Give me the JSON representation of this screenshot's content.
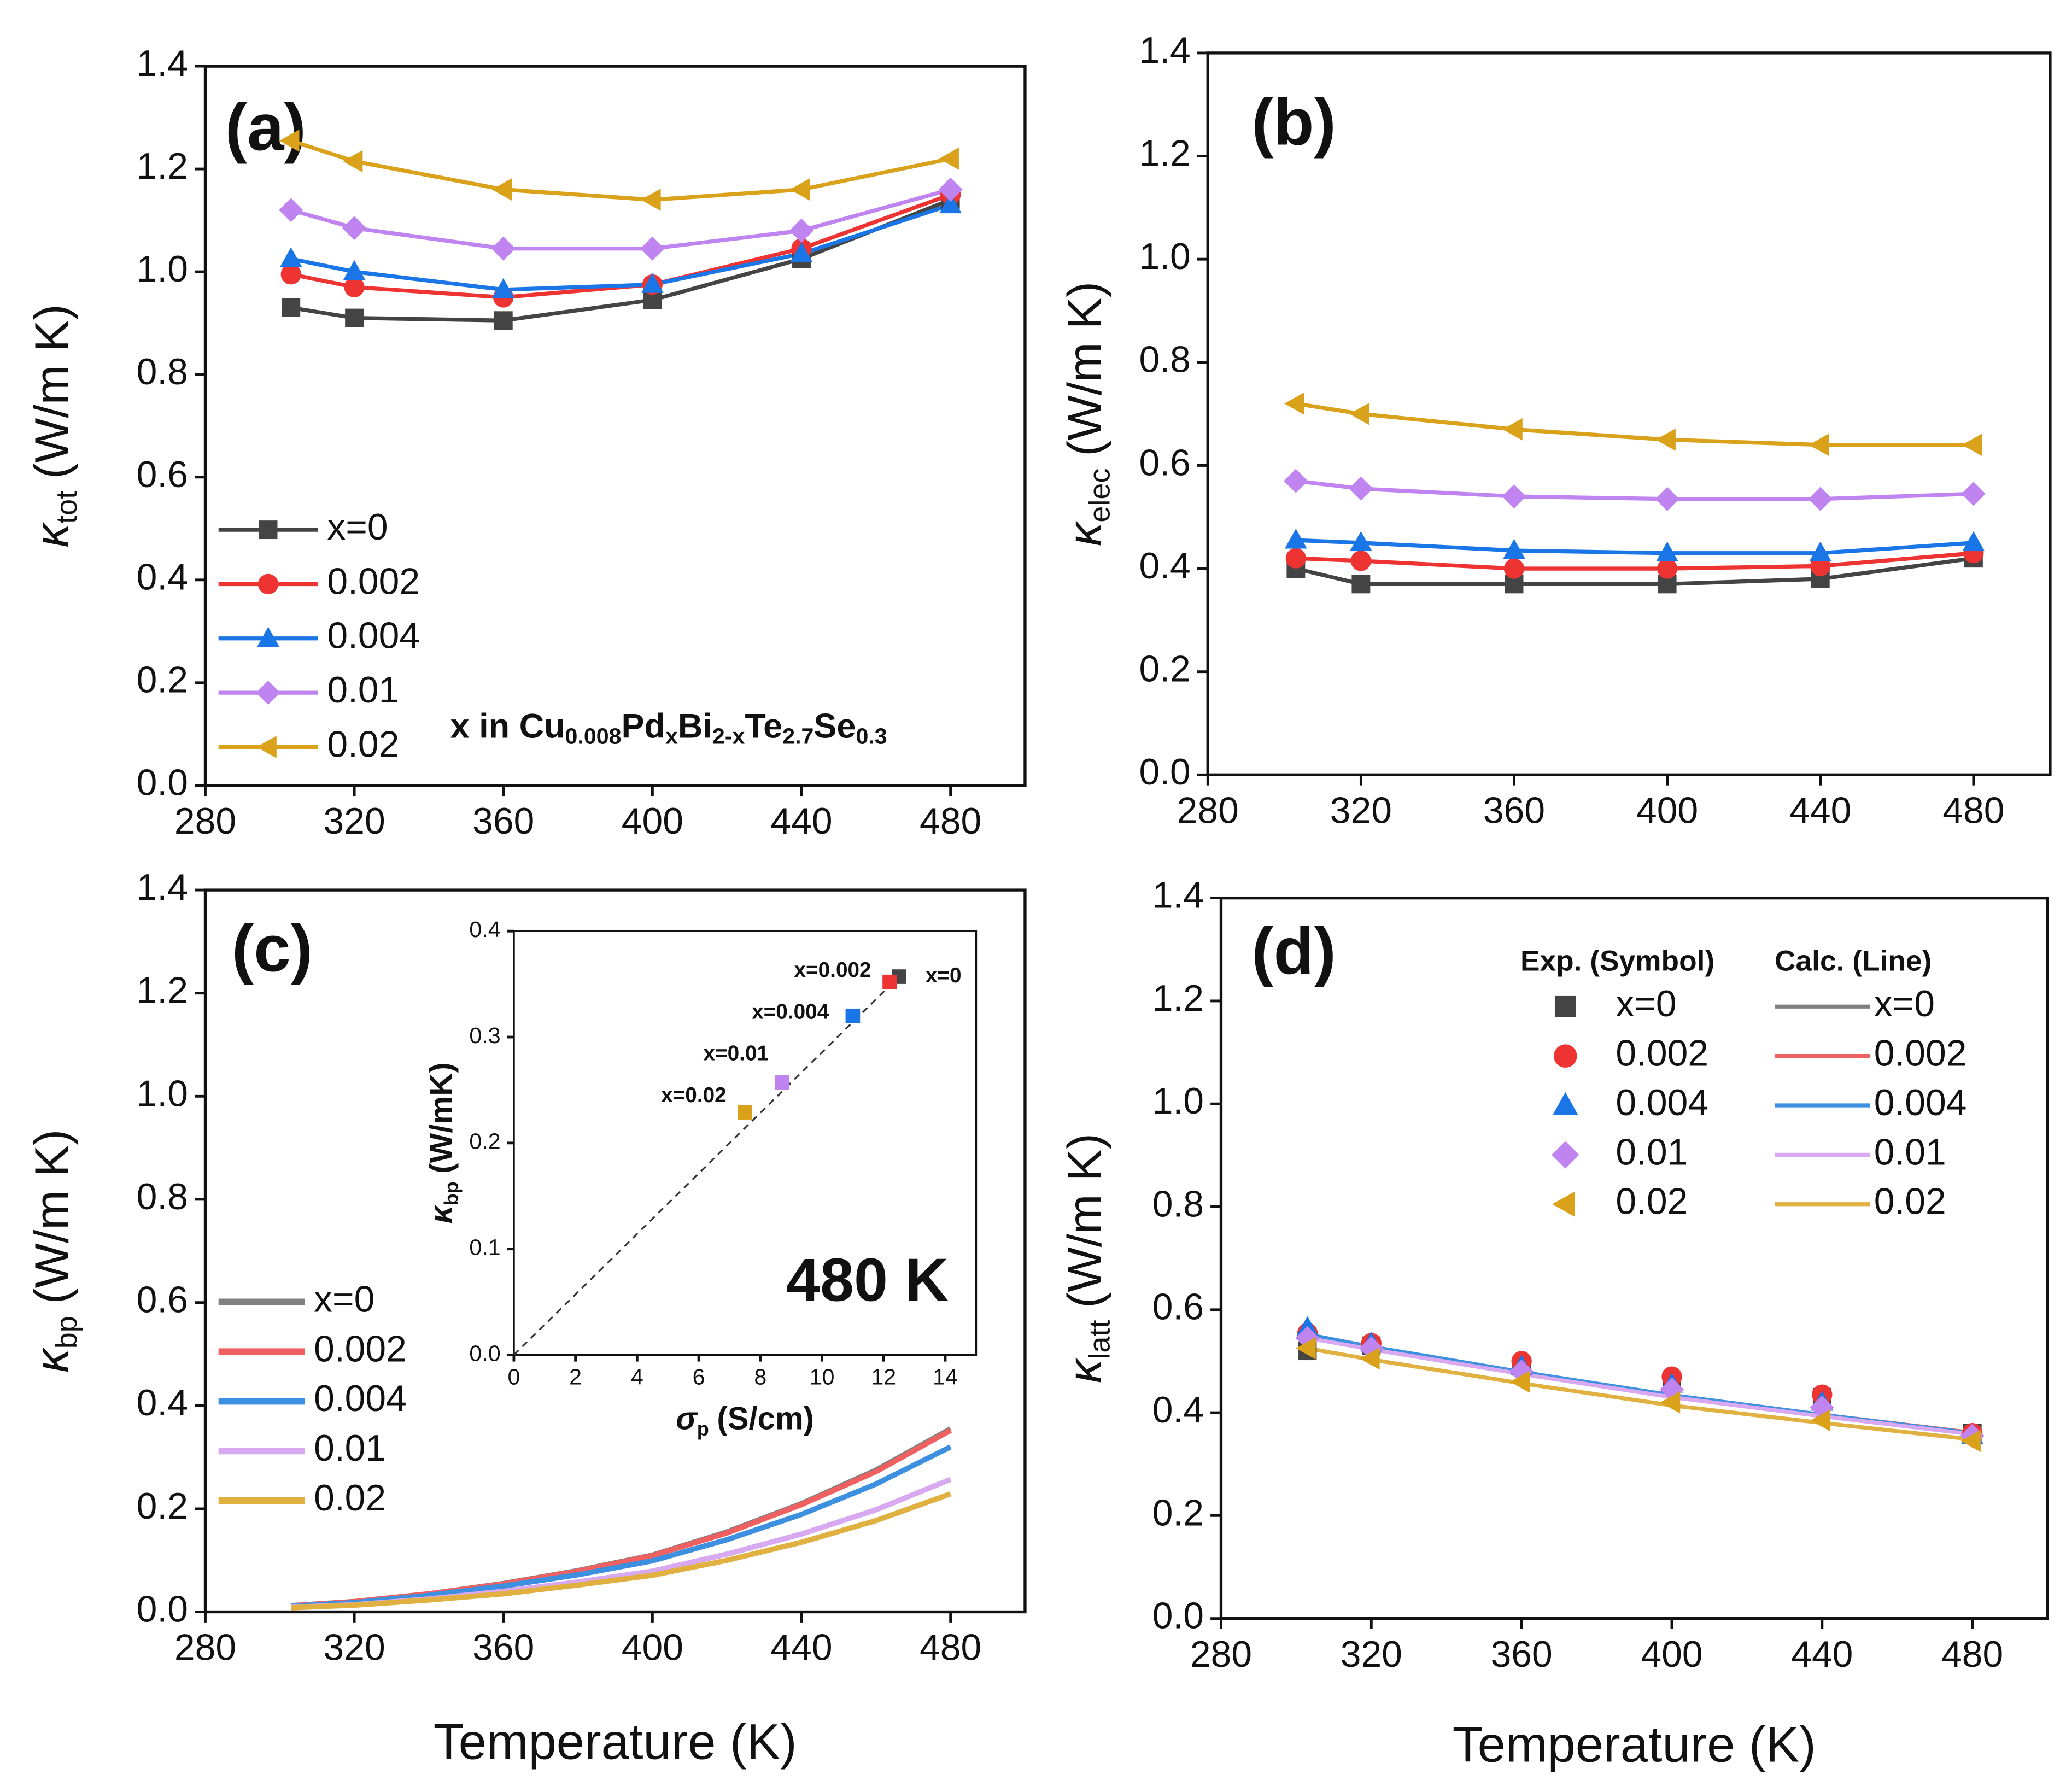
{
  "chart_data": [
    {
      "type": "line",
      "title": "(a)",
      "ylabel": {
        "symbol": "κ",
        "sub": "tot",
        "unit": "(W/m K)"
      },
      "annotation": [
        "x in Cu",
        "0.008",
        "Pd",
        "x",
        "Bi",
        "2-x",
        "Te",
        "2.7",
        "Se",
        "0.3"
      ],
      "x": [
        303,
        320,
        360,
        400,
        440,
        480
      ],
      "xlim": [
        280,
        500
      ],
      "xticks": [
        280,
        320,
        360,
        400,
        440,
        480
      ],
      "ylim": [
        0,
        1.4
      ],
      "yticks": [
        {
          "value": 0,
          "label": "0.0"
        },
        0.2,
        0.4,
        0.6,
        0.8,
        {
          "value": 1,
          "label": "1.0"
        },
        1.2,
        1.4
      ],
      "legend": "lower left",
      "series": [
        {
          "name": "x=0",
          "color": "#444444",
          "marker": "square",
          "values": [
            0.93,
            0.91,
            0.905,
            0.945,
            1.025,
            1.14
          ]
        },
        {
          "name": "0.002",
          "color": "#ee3333",
          "marker": "circle",
          "values": [
            0.995,
            0.97,
            0.95,
            0.975,
            1.045,
            1.15
          ]
        },
        {
          "name": "0.004",
          "color": "#1a75e6",
          "marker": "triangle-up",
          "values": [
            1.025,
            1.0,
            0.965,
            0.975,
            1.035,
            1.13
          ]
        },
        {
          "name": "0.01",
          "color": "#c084f0",
          "marker": "diamond",
          "values": [
            1.12,
            1.085,
            1.045,
            1.045,
            1.08,
            1.16
          ]
        },
        {
          "name": "0.02",
          "color": "#d9a21a",
          "marker": "triangle-left",
          "values": [
            1.255,
            1.215,
            1.16,
            1.14,
            1.16,
            1.22
          ]
        }
      ]
    },
    {
      "type": "line",
      "title": "(b)",
      "ylabel": {
        "symbol": "κ",
        "sub": "elec",
        "unit": "(W/m K)"
      },
      "x": [
        303,
        320,
        360,
        400,
        440,
        480
      ],
      "xlim": [
        280,
        500
      ],
      "xticks": [
        280,
        320,
        360,
        400,
        440,
        480
      ],
      "ylim": [
        0,
        1.4
      ],
      "yticks": [
        {
          "value": 0,
          "label": "0.0"
        },
        0.2,
        0.4,
        0.6,
        0.8,
        {
          "value": 1,
          "label": "1.0"
        },
        1.2,
        1.4
      ],
      "series": [
        {
          "color": "#444444",
          "marker": "square",
          "values": [
            0.4,
            0.37,
            0.37,
            0.37,
            0.38,
            0.42
          ]
        },
        {
          "color": "#ee3333",
          "marker": "circle",
          "values": [
            0.42,
            0.415,
            0.4,
            0.4,
            0.405,
            0.43
          ]
        },
        {
          "color": "#1a75e6",
          "marker": "triangle-up",
          "values": [
            0.455,
            0.45,
            0.435,
            0.43,
            0.43,
            0.45
          ]
        },
        {
          "color": "#c084f0",
          "marker": "diamond",
          "values": [
            0.57,
            0.555,
            0.54,
            0.535,
            0.535,
            0.545
          ]
        },
        {
          "color": "#d9a21a",
          "marker": "triangle-left",
          "values": [
            0.72,
            0.7,
            0.67,
            0.65,
            0.64,
            0.64
          ]
        }
      ]
    },
    {
      "type": "line",
      "title": "(c)",
      "ylabel": {
        "symbol": "κ",
        "sub": "bp",
        "unit": "(W/m K)"
      },
      "xlabel": "Temperature (K)",
      "x": [
        303,
        320,
        340,
        360,
        380,
        400,
        420,
        440,
        460,
        480
      ],
      "xlim": [
        280,
        500
      ],
      "xticks": [
        280,
        320,
        360,
        400,
        440,
        480
      ],
      "ylim": [
        0,
        1.4
      ],
      "yticks": [
        {
          "value": 0,
          "label": "0.0"
        },
        0.2,
        0.4,
        0.6,
        0.8,
        {
          "value": 1,
          "label": "1.0"
        },
        1.2,
        1.4
      ],
      "legend": "lower left",
      "series": [
        {
          "name": "x=0",
          "color": "#808080",
          "values": [
            0.012,
            0.02,
            0.035,
            0.055,
            0.08,
            0.11,
            0.155,
            0.21,
            0.275,
            0.355
          ]
        },
        {
          "name": "0.002",
          "color": "#f06060",
          "values": [
            0.012,
            0.02,
            0.035,
            0.054,
            0.079,
            0.109,
            0.153,
            0.208,
            0.272,
            0.352
          ]
        },
        {
          "name": "0.004",
          "color": "#3d8fe0",
          "values": [
            0.011,
            0.018,
            0.032,
            0.05,
            0.072,
            0.099,
            0.14,
            0.189,
            0.248,
            0.32
          ]
        },
        {
          "name": "0.01",
          "color": "#d8a8f0",
          "values": [
            0.009,
            0.014,
            0.025,
            0.04,
            0.058,
            0.079,
            0.112,
            0.151,
            0.198,
            0.257
          ]
        },
        {
          "name": "0.02",
          "color": "#e0b040",
          "values": [
            0.008,
            0.013,
            0.023,
            0.035,
            0.052,
            0.071,
            0.1,
            0.135,
            0.177,
            0.229
          ]
        }
      ],
      "inset": {
        "type": "scatter",
        "xlabel": {
          "symbol": "σ",
          "sub": "p",
          "unit": "(S/cm)"
        },
        "ylabel": {
          "symbol": "κ",
          "sub": "bp",
          "unit": "(W/mK)"
        },
        "annotation": "480 K",
        "xlim": [
          0,
          15
        ],
        "xticks": [
          0,
          2,
          4,
          6,
          8,
          10,
          12,
          14
        ],
        "ylim": [
          0,
          0.4
        ],
        "yticks": [
          {
            "value": 0,
            "label": "0.0"
          },
          0.1,
          0.2,
          0.3,
          0.4
        ],
        "x": [
          12.5,
          12.2,
          11.0,
          8.7,
          7.5
        ],
        "values": [
          0.357,
          0.352,
          0.32,
          0.257,
          0.229
        ],
        "labels": [
          "x=0",
          "x=0.002",
          "x=0.004",
          "x=0.01",
          "x=0.02"
        ],
        "colors": [
          "#444444",
          "#ee3333",
          "#1a75e6",
          "#c084f0",
          "#d9a21a"
        ],
        "fit": {
          "x": [
            0,
            12.5
          ],
          "values": [
            0,
            0.357
          ]
        }
      }
    },
    {
      "type": "scatter",
      "title": "(d)",
      "ylabel": {
        "symbol": "κ",
        "sub": "latt",
        "unit": "(W/m K)"
      },
      "xlabel": "Temperature (K)",
      "legend_headers": [
        "Exp. (Symbol)",
        "Calc. (Line)"
      ],
      "x": [
        303,
        320,
        360,
        400,
        440,
        480
      ],
      "xlim": [
        280,
        500
      ],
      "xticks": [
        280,
        320,
        360,
        400,
        440,
        480
      ],
      "ylim": [
        0,
        1.4
      ],
      "yticks": [
        {
          "value": 0,
          "label": "0.0"
        },
        0.2,
        0.4,
        0.6,
        0.8,
        {
          "value": 1,
          "label": "1.0"
        },
        1.2,
        1.4
      ],
      "legend": "upper right",
      "series": [
        {
          "name": "x=0",
          "color": "#444444",
          "marker": "square",
          "values": [
            0.52,
            0.53,
            0.49,
            0.46,
            0.43,
            0.36
          ]
        },
        {
          "name": "0.002",
          "color": "#ee3333",
          "marker": "circle",
          "values": [
            0.555,
            0.535,
            0.5,
            0.47,
            0.435,
            0.36
          ]
        },
        {
          "name": "0.004",
          "color": "#1a75e6",
          "marker": "triangle-up",
          "values": [
            0.565,
            0.535,
            0.49,
            0.455,
            0.42,
            0.355
          ]
        },
        {
          "name": "0.01",
          "color": "#c084f0",
          "marker": "diamond",
          "values": [
            0.545,
            0.525,
            0.48,
            0.445,
            0.41,
            0.355
          ]
        },
        {
          "name": "0.02",
          "color": "#d9a21a",
          "marker": "triangle-left",
          "values": [
            0.525,
            0.505,
            0.46,
            0.42,
            0.385,
            0.345
          ]
        }
      ],
      "calc_series": [
        {
          "name": "x=0",
          "color": "#808080",
          "values": [
            0.548,
            0.525,
            0.477,
            0.432,
            0.395,
            0.36
          ]
        },
        {
          "name": "0.002",
          "color": "#f06060",
          "values": [
            0.55,
            0.527,
            0.478,
            0.433,
            0.396,
            0.361
          ]
        },
        {
          "name": "0.004",
          "color": "#3d8fe0",
          "values": [
            0.552,
            0.528,
            0.479,
            0.434,
            0.396,
            0.36
          ]
        },
        {
          "name": "0.01",
          "color": "#d8a8f0",
          "values": [
            0.545,
            0.523,
            0.475,
            0.43,
            0.393,
            0.358
          ]
        },
        {
          "name": "0.02",
          "color": "#e0b040",
          "values": [
            0.525,
            0.503,
            0.457,
            0.414,
            0.38,
            0.348
          ]
        }
      ]
    }
  ]
}
